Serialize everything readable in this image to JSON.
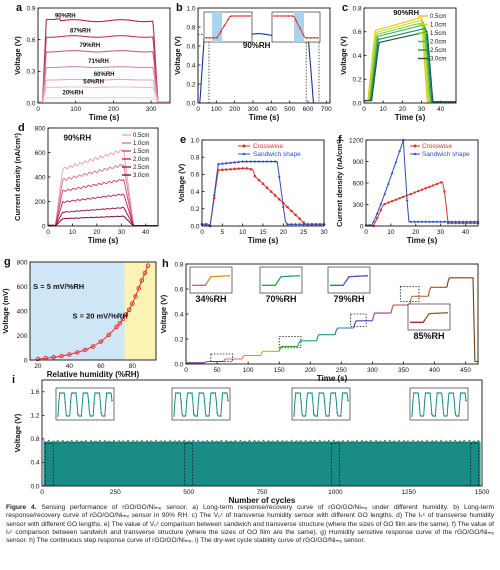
{
  "panels": {
    "a": {
      "letter": "a",
      "ylabel": "Voltage (V)",
      "xlabel": "Time (s)",
      "xlim": [
        0,
        350
      ],
      "ylim": [
        0,
        0.9
      ],
      "xticks": [
        0,
        100,
        200,
        300
      ],
      "yticks": [
        0.0,
        0.3,
        0.6,
        0.9
      ],
      "series": [
        {
          "name": "90%RH",
          "plateau": 0.78,
          "color": "#b22a4a"
        },
        {
          "name": "87%RH",
          "plateau": 0.63,
          "color": "#c23a5a"
        },
        {
          "name": "79%RH",
          "plateau": 0.49,
          "color": "#d0607a"
        },
        {
          "name": "71%RH",
          "plateau": 0.34,
          "color": "#dc8aa0"
        },
        {
          "name": "60%RH",
          "plateau": 0.22,
          "color": "#e7a8b8"
        },
        {
          "name": "54%RH",
          "plateau": 0.15,
          "color": "#eebdc8"
        },
        {
          "name": "20%RH",
          "plateau": 0.05,
          "color": "#f3cfd8"
        }
      ]
    },
    "b": {
      "letter": "b",
      "ylabel": "Voltage (V)",
      "xlabel": "Time (s)",
      "xlim": [
        0,
        720
      ],
      "ylim": [
        0,
        1.0
      ],
      "xticks": [
        0,
        100,
        200,
        300,
        400,
        500,
        600,
        700
      ],
      "yticks": [
        0.0,
        0.2,
        0.4,
        0.6,
        0.8,
        1.0
      ],
      "plateau": 0.72,
      "on": 10,
      "off": 600,
      "annotation": "90%RH"
    },
    "c": {
      "letter": "c",
      "ylabel": "Voltage (V)",
      "xlabel": "Time (s)",
      "xlim": [
        0,
        48
      ],
      "ylim": [
        0,
        0.8
      ],
      "xticks": [
        0,
        10,
        20,
        30,
        40
      ],
      "yticks": [
        0.0,
        0.2,
        0.4,
        0.6,
        0.8
      ],
      "annotation": "90%RH",
      "series": [
        {
          "name": "0.5cm",
          "peak": 0.72,
          "color": "#e6c800"
        },
        {
          "name": "1.0cm",
          "peak": 0.7,
          "color": "#c8dc1a"
        },
        {
          "name": "1.5cm",
          "peak": 0.68,
          "color": "#8cd040"
        },
        {
          "name": "2.0cm",
          "peak": 0.66,
          "color": "#3bb56a"
        },
        {
          "name": "2.5cm",
          "peak": 0.63,
          "color": "#1f8a5a"
        },
        {
          "name": "3.0cm",
          "peak": 0.6,
          "color": "#125a40"
        }
      ]
    },
    "d": {
      "letter": "d",
      "ylabel": "Current density (nA/cm²)",
      "xlabel": "Time (s)",
      "xlim": [
        0,
        45
      ],
      "ylim": [
        0,
        800
      ],
      "xticks": [
        0,
        10,
        20,
        30,
        40
      ],
      "yticks": [
        0,
        200,
        400,
        600,
        800
      ],
      "annotation": "90%RH",
      "series": [
        {
          "name": "0.5cm",
          "peak": 620,
          "color": "#f2a5b5"
        },
        {
          "name": "1.0cm",
          "peak": 500,
          "color": "#e07a93"
        },
        {
          "name": "1.5cm",
          "peak": 380,
          "color": "#d04d72"
        },
        {
          "name": "2.0cm",
          "peak": 260,
          "color": "#c02a5a"
        },
        {
          "name": "2.5cm",
          "peak": 150,
          "color": "#a01848"
        },
        {
          "name": "3.0cm",
          "peak": 80,
          "color": "#7a0a35"
        }
      ]
    },
    "e": {
      "letter": "e",
      "ylabel": "Voltage (V)",
      "xlabel": "Time (s)",
      "xlim": [
        0,
        30
      ],
      "ylim": [
        0,
        1.0
      ],
      "xticks": [
        0,
        5,
        10,
        15,
        20,
        25,
        30
      ],
      "yticks": [
        0.0,
        0.2,
        0.4,
        0.6,
        0.8,
        1.0
      ],
      "series": [
        {
          "name": "Crosswise",
          "color": "#e0302a",
          "marker": "circle"
        },
        {
          "name": "Sandwich shape",
          "color": "#2e4fb8",
          "marker": "triangle"
        }
      ]
    },
    "f": {
      "letter": "f",
      "ylabel": "Current density (nA/cm²)",
      "xlabel": "Time (s)",
      "xlim": [
        0,
        45
      ],
      "ylim": [
        0,
        1200
      ],
      "xticks": [
        0,
        10,
        20,
        30,
        40
      ],
      "yticks": [
        0,
        300,
        600,
        900,
        1200
      ],
      "series": [
        {
          "name": "Crosswise",
          "color": "#e0302a",
          "marker": "circle"
        },
        {
          "name": "Sandwich shape",
          "color": "#2e4fb8",
          "marker": "triangle"
        }
      ]
    },
    "g": {
      "letter": "g",
      "ylabel": "Voltage (mV)",
      "xlabel": "Relative humidity (%RH)",
      "xlim": [
        15,
        95
      ],
      "ylim": [
        0,
        800
      ],
      "xticks": [
        20,
        40,
        60,
        80
      ],
      "yticks": [
        0,
        200,
        400,
        600,
        800
      ],
      "label1": "S = 5 mV/%RH",
      "label2": "S = 20 mV/%RH",
      "x": [
        20,
        25,
        30,
        35,
        40,
        45,
        50,
        55,
        60,
        65,
        70,
        72,
        74,
        76,
        78,
        80,
        82,
        84,
        86,
        88,
        90
      ],
      "y": [
        8,
        15,
        22,
        32,
        45,
        62,
        82,
        110,
        150,
        205,
        270,
        300,
        335,
        372,
        410,
        460,
        520,
        585,
        650,
        710,
        770
      ]
    },
    "h": {
      "letter": "h",
      "ylabel": "Voltage (V)",
      "xlabel": "Time (s)",
      "xlim": [
        0,
        470
      ],
      "ylim": [
        0,
        0.8
      ],
      "xticks": [
        0,
        50,
        100,
        150,
        200,
        250,
        300,
        350,
        400,
        450
      ],
      "yticks": [
        0.0,
        0.2,
        0.4,
        0.6,
        0.8
      ],
      "insets": [
        "34%RH",
        "70%RH",
        "79%RH",
        "85%RH"
      ]
    },
    "i": {
      "letter": "i",
      "ylabel": "Voltage (V)",
      "xlabel": "Number of cycles",
      "xlim": [
        0,
        1500
      ],
      "ylim": [
        0,
        1.8
      ],
      "xticks": [
        0,
        250,
        500,
        750,
        1000,
        1250,
        1500
      ],
      "yticks": [
        0.0,
        0.4,
        0.8,
        1.2,
        1.6
      ],
      "band": [
        0.0,
        0.75
      ]
    }
  },
  "caption": {
    "figure_label": "Figure 4.",
    "text": " Sensing performance of rGO/GO/Niₘₑ sensor. a) Long-term response/recovery curve of rGO/GO/Niₘₑ under different humidity. b) Long-term response/recovery curve of rGO/GO/Niₘₑ sensor in 90% RH. c) The Vₒᶜ of transverse humidity sensor with different GO lengths. d) The Iₛᶜ of transverse humidity sensor with different GO lengths. e) The value of Vₒᶜ comparison between sandwich and transverse structure (where the sizes of GO film are the same). f) The value of Iₛᶜ comparison between sandwich and transverse structure (where the sizes of GO film are the same). g) Humidity sensitive response curve of the rGO/GO/Niₘₑ sensor. h) The continuous step response curve of rGO/GO/Niₘₑ. i) The dry-wet cycle stability curve of rGO/GO/Niₘₑ sensor."
  }
}
